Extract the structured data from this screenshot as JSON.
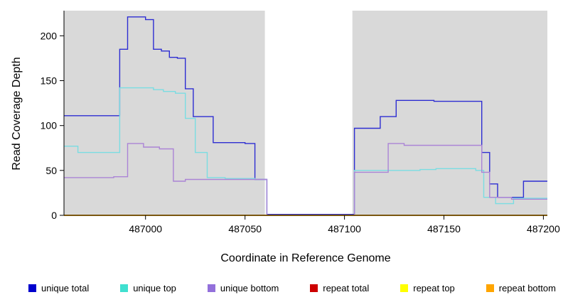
{
  "chart_data": {
    "type": "line",
    "step": true,
    "title": "",
    "xlabel": "Coordinate in Reference Genome",
    "ylabel": "Read Coverage Depth",
    "xlim": [
      486959,
      487202
    ],
    "ylim": [
      0,
      228
    ],
    "x_ticks": [
      487000,
      487050,
      487100,
      487150,
      487200
    ],
    "y_ticks": [
      0,
      50,
      100,
      150,
      200
    ],
    "panel_bg": "#d9d9d9",
    "grid": false,
    "legend_position": "bottom",
    "gap_region": [
      487060,
      487104
    ],
    "series": [
      {
        "name": "unique total",
        "color": "#2d2dd2",
        "points": [
          [
            486959,
            111
          ],
          [
            486987,
            185
          ],
          [
            486991,
            221
          ],
          [
            487000,
            218
          ],
          [
            487004,
            185
          ],
          [
            487008,
            183
          ],
          [
            487012,
            176
          ],
          [
            487016,
            175
          ],
          [
            487020,
            141
          ],
          [
            487024,
            110
          ],
          [
            487034,
            81
          ],
          [
            487050,
            80
          ],
          [
            487055,
            40
          ],
          [
            487061,
            1
          ],
          [
            487103,
            1
          ],
          [
            487105,
            97
          ],
          [
            487118,
            110
          ],
          [
            487126,
            128
          ],
          [
            487145,
            127
          ],
          [
            487169,
            70
          ],
          [
            487173,
            35
          ],
          [
            487177,
            20
          ],
          [
            487190,
            38
          ],
          [
            487202,
            38
          ]
        ]
      },
      {
        "name": "unique top",
        "color": "#7adde2",
        "points": [
          [
            486959,
            77
          ],
          [
            486966,
            70
          ],
          [
            486987,
            142
          ],
          [
            487004,
            140
          ],
          [
            487009,
            138
          ],
          [
            487015,
            136
          ],
          [
            487020,
            108
          ],
          [
            487025,
            70
          ],
          [
            487031,
            42
          ],
          [
            487040,
            41
          ],
          [
            487055,
            40
          ],
          [
            487061,
            0
          ],
          [
            487103,
            0
          ],
          [
            487105,
            50
          ],
          [
            487138,
            51
          ],
          [
            487146,
            52
          ],
          [
            487166,
            50
          ],
          [
            487170,
            20
          ],
          [
            487176,
            13
          ],
          [
            487185,
            19
          ],
          [
            487202,
            19
          ]
        ]
      },
      {
        "name": "unique bottom",
        "color": "#ab84d6",
        "points": [
          [
            486959,
            42
          ],
          [
            486984,
            43
          ],
          [
            486991,
            80
          ],
          [
            486999,
            76
          ],
          [
            487007,
            74
          ],
          [
            487014,
            38
          ],
          [
            487020,
            40
          ],
          [
            487055,
            40
          ],
          [
            487061,
            0
          ],
          [
            487103,
            0
          ],
          [
            487105,
            48
          ],
          [
            487122,
            80
          ],
          [
            487130,
            78
          ],
          [
            487166,
            78
          ],
          [
            487169,
            48
          ],
          [
            487173,
            20
          ],
          [
            487184,
            18
          ],
          [
            487202,
            18
          ]
        ]
      },
      {
        "name": "repeat total",
        "color": "#cd0000",
        "points": [
          [
            486959,
            0
          ],
          [
            487202,
            0
          ]
        ]
      },
      {
        "name": "repeat top",
        "color": "#f5f500",
        "points": [
          [
            486959,
            0
          ],
          [
            487202,
            0
          ]
        ]
      },
      {
        "name": "repeat bottom",
        "color": "#ffa500",
        "points": [
          [
            486959,
            0
          ],
          [
            487202,
            0
          ]
        ]
      }
    ]
  },
  "legend": {
    "items": [
      {
        "label": "unique total",
        "color": "#0000cd"
      },
      {
        "label": "unique top",
        "color": "#40e0d0"
      },
      {
        "label": "unique bottom",
        "color": "#9370db"
      },
      {
        "label": "repeat total",
        "color": "#cd0000"
      },
      {
        "label": "repeat top",
        "color": "#ffff00"
      },
      {
        "label": "repeat bottom",
        "color": "#ffa500"
      }
    ]
  }
}
